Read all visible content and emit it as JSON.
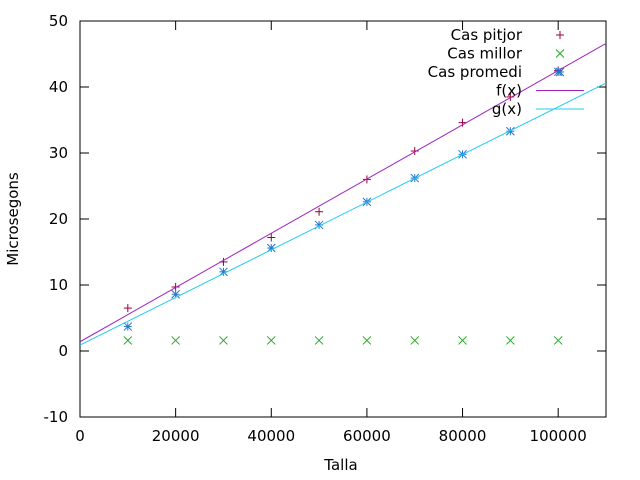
{
  "chart_data": {
    "type": "scatter",
    "xlabel": "Talla",
    "ylabel": "Microsegons",
    "xlim": [
      0,
      110000
    ],
    "ylim": [
      -10,
      50
    ],
    "xticks": [
      0,
      20000,
      40000,
      60000,
      80000,
      100000
    ],
    "yticks": [
      -10,
      0,
      10,
      20,
      30,
      40,
      50
    ],
    "grid": false,
    "legend_position": "top-right",
    "series": [
      {
        "name": "Cas pitjor",
        "kind": "points",
        "marker": "plus",
        "color": "#990033",
        "x": [
          10000,
          20000,
          30000,
          40000,
          50000,
          60000,
          70000,
          80000,
          90000,
          100000
        ],
        "y": [
          6.5,
          9.7,
          13.5,
          17.2,
          21.1,
          26.0,
          30.3,
          34.6,
          38.5,
          42.5
        ]
      },
      {
        "name": "Cas millor",
        "kind": "points",
        "marker": "cross",
        "color": "#22aa22",
        "x": [
          10000,
          20000,
          30000,
          40000,
          50000,
          60000,
          70000,
          80000,
          90000,
          100000
        ],
        "y": [
          1.6,
          1.6,
          1.6,
          1.6,
          1.6,
          1.6,
          1.6,
          1.6,
          1.6,
          1.6
        ]
      },
      {
        "name": "Cas promedi",
        "kind": "points",
        "marker": "star",
        "color": "#2277cc",
        "x": [
          10000,
          20000,
          30000,
          40000,
          50000,
          60000,
          70000,
          80000,
          90000,
          100000
        ],
        "y": [
          3.7,
          8.6,
          12.0,
          15.6,
          19.1,
          22.6,
          26.2,
          29.8,
          33.3,
          42.3
        ]
      },
      {
        "name": "f(x)",
        "kind": "line",
        "color": "#a020c0",
        "x": [
          0,
          110000
        ],
        "y": [
          1.4,
          46.6
        ]
      },
      {
        "name": "g(x)",
        "kind": "line",
        "color": "#22ccee",
        "x": [
          0,
          110000
        ],
        "y": [
          0.9,
          40.6
        ]
      }
    ]
  }
}
